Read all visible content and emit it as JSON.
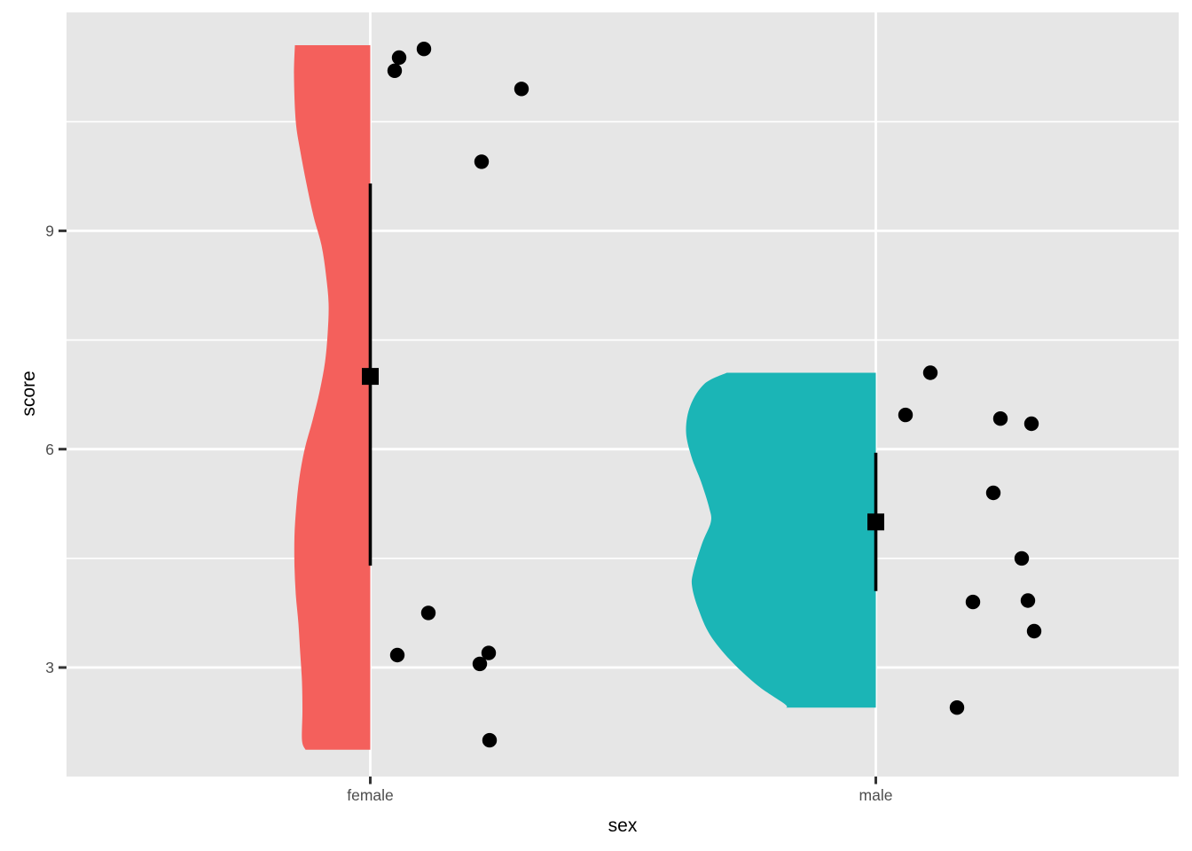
{
  "chart_data": {
    "type": "raincloud (half-violin + jittered scatter + mean pointrange)",
    "title": "",
    "xlabel": "sex",
    "ylabel": "score",
    "categories": [
      "female",
      "male"
    ],
    "y_axis": {
      "ticks": [
        3,
        6,
        9
      ],
      "tick_labels": [
        "3",
        "6",
        "9"
      ],
      "minor_ticks": [
        4.5,
        7.5,
        10.5
      ],
      "range": [
        1.5,
        12.0
      ],
      "grid": "white major+minor horizontal lines, white vertical line at each category center"
    },
    "legend": "none",
    "series": [
      {
        "name": "female",
        "color": "#F4605C",
        "points_score": [
          11.5,
          11.4,
          11.2,
          11.0,
          10.0,
          3.75,
          3.2,
          3.2,
          3.05,
          2.0
        ],
        "jitter": [
          [
            478,
            11.5
          ],
          [
            450,
            11.38
          ],
          [
            445,
            11.2
          ],
          [
            588,
            10.95
          ],
          [
            543,
            9.95
          ],
          [
            483,
            3.75
          ],
          [
            448,
            3.17
          ],
          [
            551,
            3.2
          ],
          [
            541,
            3.05
          ],
          [
            552,
            2.0
          ]
        ],
        "mean": 7.0,
        "range_low": 4.4,
        "range_high": 9.65,
        "violin_side": "left",
        "violin_profile": [
          [
            11.55,
            85
          ],
          [
            11.1,
            86
          ],
          [
            10.5,
            84
          ],
          [
            10.1,
            79
          ],
          [
            9.65,
            72
          ],
          [
            9.2,
            64
          ],
          [
            8.8,
            55
          ],
          [
            8.4,
            50
          ],
          [
            8.0,
            47
          ],
          [
            7.6,
            48
          ],
          [
            7.2,
            51
          ],
          [
            6.8,
            57
          ],
          [
            6.4,
            65
          ],
          [
            6.0,
            74
          ],
          [
            5.6,
            80
          ],
          [
            5.2,
            83.5
          ],
          [
            4.8,
            85.5
          ],
          [
            4.4,
            85.5
          ],
          [
            4.0,
            84
          ],
          [
            3.6,
            81
          ],
          [
            3.2,
            79
          ],
          [
            2.8,
            77
          ],
          [
            2.4,
            76.5
          ],
          [
            2.0,
            77
          ],
          [
            1.87,
            73
          ]
        ]
      },
      {
        "name": "male",
        "color": "#1BB5B6",
        "points_score": [
          7.05,
          6.45,
          6.4,
          6.35,
          5.4,
          4.5,
          3.9,
          3.9,
          3.5,
          2.45
        ],
        "jitter": [
          [
            1049,
            7.05
          ],
          [
            1021,
            6.47
          ],
          [
            1128,
            6.42
          ],
          [
            1163,
            6.35
          ],
          [
            1120,
            5.4
          ],
          [
            1152,
            4.5
          ],
          [
            1097,
            3.9
          ],
          [
            1159,
            3.92
          ],
          [
            1166,
            3.5
          ],
          [
            1079,
            2.45
          ]
        ],
        "mean": 5.0,
        "range_low": 4.05,
        "range_high": 5.95,
        "violin_side": "left",
        "violin_profile": [
          [
            7.05,
            168
          ],
          [
            6.9,
            193
          ],
          [
            6.6,
            209
          ],
          [
            6.25,
            214
          ],
          [
            5.9,
            208
          ],
          [
            5.55,
            197
          ],
          [
            5.2,
            188
          ],
          [
            5.0,
            186
          ],
          [
            4.7,
            196
          ],
          [
            4.3,
            206
          ],
          [
            4.1,
            207
          ],
          [
            3.8,
            200
          ],
          [
            3.45,
            187
          ],
          [
            3.1,
            164
          ],
          [
            2.75,
            133
          ],
          [
            2.5,
            103
          ],
          [
            2.45,
            101
          ]
        ]
      }
    ]
  },
  "colors": {
    "figure_bg": "#FFFFFF",
    "panel_bg": "#E6E6E6",
    "gridline": "#FFFFFF",
    "axis_text": "#4D4D4D",
    "axis_title": "#000000",
    "tick_mark": "#333333",
    "point": "#000000",
    "pointrange": "#000000"
  }
}
